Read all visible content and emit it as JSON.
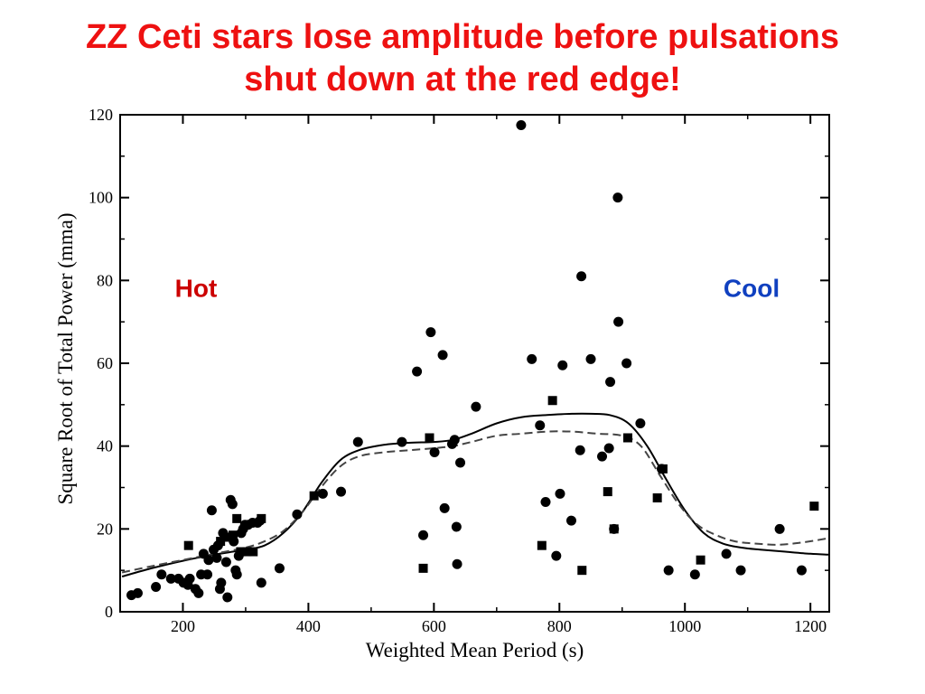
{
  "title": {
    "line1": "ZZ Ceti stars lose amplitude before pulsations",
    "line2": "shut down at the red edge!"
  },
  "chart_data": {
    "type": "scatter",
    "xlabel": "Weighted Mean Period (s)",
    "ylabel": "Square Root of Total Power (mma)",
    "xlim": [
      100,
      1230
    ],
    "ylim": [
      0,
      120
    ],
    "x_ticks": [
      200,
      400,
      600,
      800,
      1000,
      1200
    ],
    "y_ticks": [
      0,
      20,
      40,
      60,
      80,
      100,
      120
    ],
    "grid": false,
    "annotations": [
      {
        "text": "Hot",
        "x": 212,
        "y": 76,
        "color": "#cc0000"
      },
      {
        "text": "Cool",
        "x": 1148,
        "y": 76,
        "color": "#1040c0"
      }
    ],
    "series": [
      {
        "marker": "circle",
        "points": [
          [
            118,
            4
          ],
          [
            128,
            4.5
          ],
          [
            157,
            6
          ],
          [
            166,
            9
          ],
          [
            181,
            8
          ],
          [
            193,
            8
          ],
          [
            201,
            7
          ],
          [
            208,
            6.5
          ],
          [
            211,
            8
          ],
          [
            220,
            5.5
          ],
          [
            225,
            4.5
          ],
          [
            229,
            9
          ],
          [
            233,
            14
          ],
          [
            239,
            9
          ],
          [
            241,
            12.5
          ],
          [
            246,
            24.5
          ],
          [
            249,
            15
          ],
          [
            254,
            13
          ],
          [
            256,
            16
          ],
          [
            259,
            5.5
          ],
          [
            261,
            7
          ],
          [
            264,
            19
          ],
          [
            269,
            12
          ],
          [
            271,
            3.5
          ],
          [
            276,
            27
          ],
          [
            279,
            26
          ],
          [
            281,
            17
          ],
          [
            284,
            10
          ],
          [
            286,
            9
          ],
          [
            289,
            13.5
          ],
          [
            293,
            19
          ],
          [
            296,
            20
          ],
          [
            299,
            21
          ],
          [
            304,
            21
          ],
          [
            311,
            21.5
          ],
          [
            319,
            21.5
          ],
          [
            323,
            22
          ],
          [
            325,
            7
          ],
          [
            354,
            10.5
          ],
          [
            382,
            23.5
          ],
          [
            423,
            28.5
          ],
          [
            452,
            29
          ],
          [
            479,
            41
          ],
          [
            549,
            41
          ],
          [
            573,
            58
          ],
          [
            583,
            18.5
          ],
          [
            595,
            67.5
          ],
          [
            601,
            38.5
          ],
          [
            614,
            62
          ],
          [
            617,
            25
          ],
          [
            629,
            40.5
          ],
          [
            633,
            41.5
          ],
          [
            636,
            20.5
          ],
          [
            637,
            11.5
          ],
          [
            642,
            36
          ],
          [
            667,
            49.5
          ],
          [
            739,
            117.5
          ],
          [
            756,
            61
          ],
          [
            769,
            45
          ],
          [
            778,
            26.5
          ],
          [
            795,
            13.5
          ],
          [
            801,
            28.5
          ],
          [
            805,
            59.5
          ],
          [
            819,
            22
          ],
          [
            833,
            39
          ],
          [
            835,
            81
          ],
          [
            850,
            61
          ],
          [
            868,
            37.5
          ],
          [
            879,
            39.5
          ],
          [
            881,
            55.5
          ],
          [
            887,
            20
          ],
          [
            893,
            100
          ],
          [
            894,
            70
          ],
          [
            907,
            60
          ],
          [
            929,
            45.5
          ],
          [
            963,
            34.5
          ],
          [
            974,
            10
          ],
          [
            1016,
            9
          ],
          [
            1066,
            14
          ],
          [
            1089,
            10
          ],
          [
            1151,
            20
          ],
          [
            1186,
            10
          ]
        ]
      },
      {
        "marker": "square",
        "points": [
          [
            209,
            16
          ],
          [
            260,
            17
          ],
          [
            272,
            18
          ],
          [
            280,
            18.5
          ],
          [
            286,
            22.5
          ],
          [
            292,
            14.5
          ],
          [
            302,
            14.5
          ],
          [
            312,
            14.5
          ],
          [
            325,
            22.5
          ],
          [
            409,
            28
          ],
          [
            583,
            10.5
          ],
          [
            593,
            42
          ],
          [
            772,
            16
          ],
          [
            789,
            51
          ],
          [
            836,
            10
          ],
          [
            877,
            29
          ],
          [
            887,
            20
          ],
          [
            909,
            42
          ],
          [
            956,
            27.5
          ],
          [
            965,
            34.5
          ],
          [
            1025,
            12.5
          ],
          [
            1206,
            25.5
          ]
        ]
      }
    ],
    "curves": [
      {
        "style": "solid",
        "points": [
          [
            103,
            8.5
          ],
          [
            150,
            10.5
          ],
          [
            200,
            12.3
          ],
          [
            250,
            13.8
          ],
          [
            300,
            15
          ],
          [
            330,
            16
          ],
          [
            360,
            19
          ],
          [
            390,
            24
          ],
          [
            420,
            31
          ],
          [
            450,
            36.5
          ],
          [
            480,
            39
          ],
          [
            520,
            40.3
          ],
          [
            560,
            40.8
          ],
          [
            600,
            41
          ],
          [
            630,
            41.5
          ],
          [
            660,
            43
          ],
          [
            700,
            45.5
          ],
          [
            740,
            47
          ],
          [
            780,
            47.5
          ],
          [
            820,
            47.8
          ],
          [
            850,
            47.8
          ],
          [
            880,
            47.5
          ],
          [
            910,
            45.5
          ],
          [
            940,
            40
          ],
          [
            970,
            32
          ],
          [
            1000,
            24.5
          ],
          [
            1030,
            19
          ],
          [
            1060,
            16.5
          ],
          [
            1090,
            15.5
          ],
          [
            1120,
            15
          ],
          [
            1160,
            14.5
          ],
          [
            1200,
            14
          ],
          [
            1230,
            13.8
          ]
        ]
      },
      {
        "style": "dashed",
        "points": [
          [
            103,
            9.5
          ],
          [
            150,
            11
          ],
          [
            200,
            12.5
          ],
          [
            250,
            14
          ],
          [
            300,
            15.5
          ],
          [
            330,
            17
          ],
          [
            360,
            19.5
          ],
          [
            390,
            24
          ],
          [
            420,
            30
          ],
          [
            450,
            35
          ],
          [
            480,
            37.5
          ],
          [
            520,
            38.5
          ],
          [
            560,
            39
          ],
          [
            600,
            39.5
          ],
          [
            630,
            40
          ],
          [
            660,
            41
          ],
          [
            700,
            42.5
          ],
          [
            740,
            43
          ],
          [
            780,
            43.5
          ],
          [
            820,
            43.5
          ],
          [
            860,
            43
          ],
          [
            900,
            42.5
          ],
          [
            930,
            40
          ],
          [
            960,
            33
          ],
          [
            990,
            26
          ],
          [
            1020,
            21
          ],
          [
            1050,
            18.5
          ],
          [
            1080,
            17
          ],
          [
            1110,
            16.5
          ],
          [
            1150,
            16.2
          ],
          [
            1190,
            16.8
          ],
          [
            1230,
            17.8
          ]
        ]
      }
    ]
  }
}
